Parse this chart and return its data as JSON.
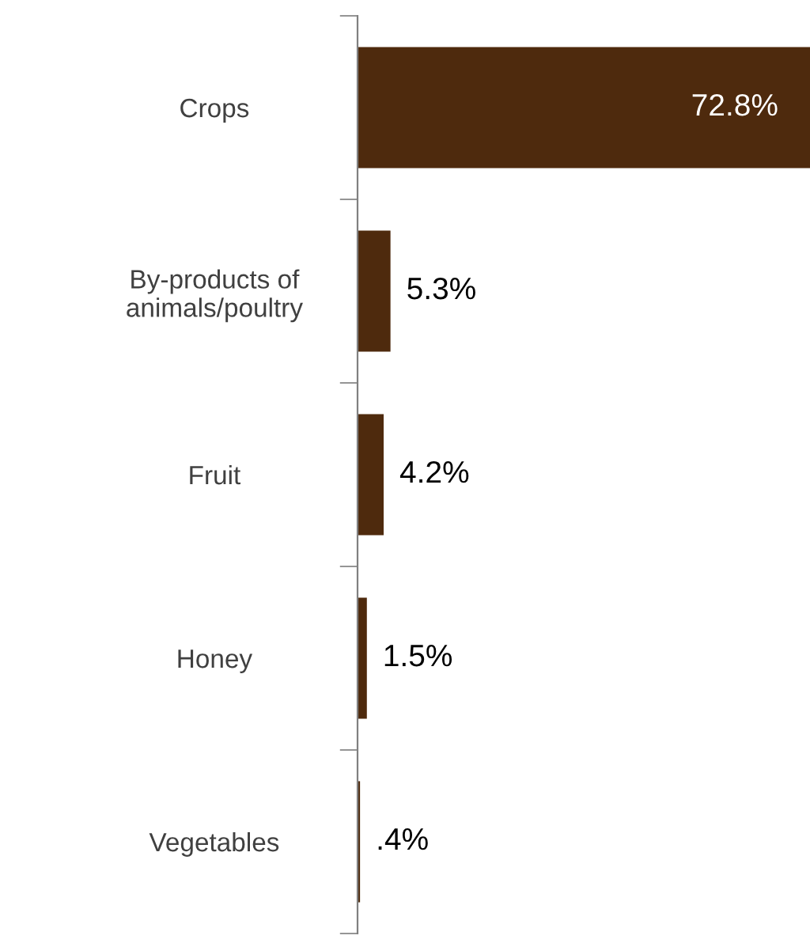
{
  "chart_data": {
    "type": "bar",
    "orientation": "horizontal",
    "categories": [
      "Crops",
      "By-products of\nanimals/poultry",
      "Fruit",
      "Honey",
      "Vegetables"
    ],
    "values": [
      72.8,
      5.3,
      4.2,
      1.5,
      0.4
    ],
    "color": "#4e2a0d",
    "value_labels": [
      "72.8%",
      "5.3%",
      "4.2%",
      "1.5%",
      ".4%"
    ],
    "grid": false,
    "legend": false,
    "tick_labels": "y"
  }
}
